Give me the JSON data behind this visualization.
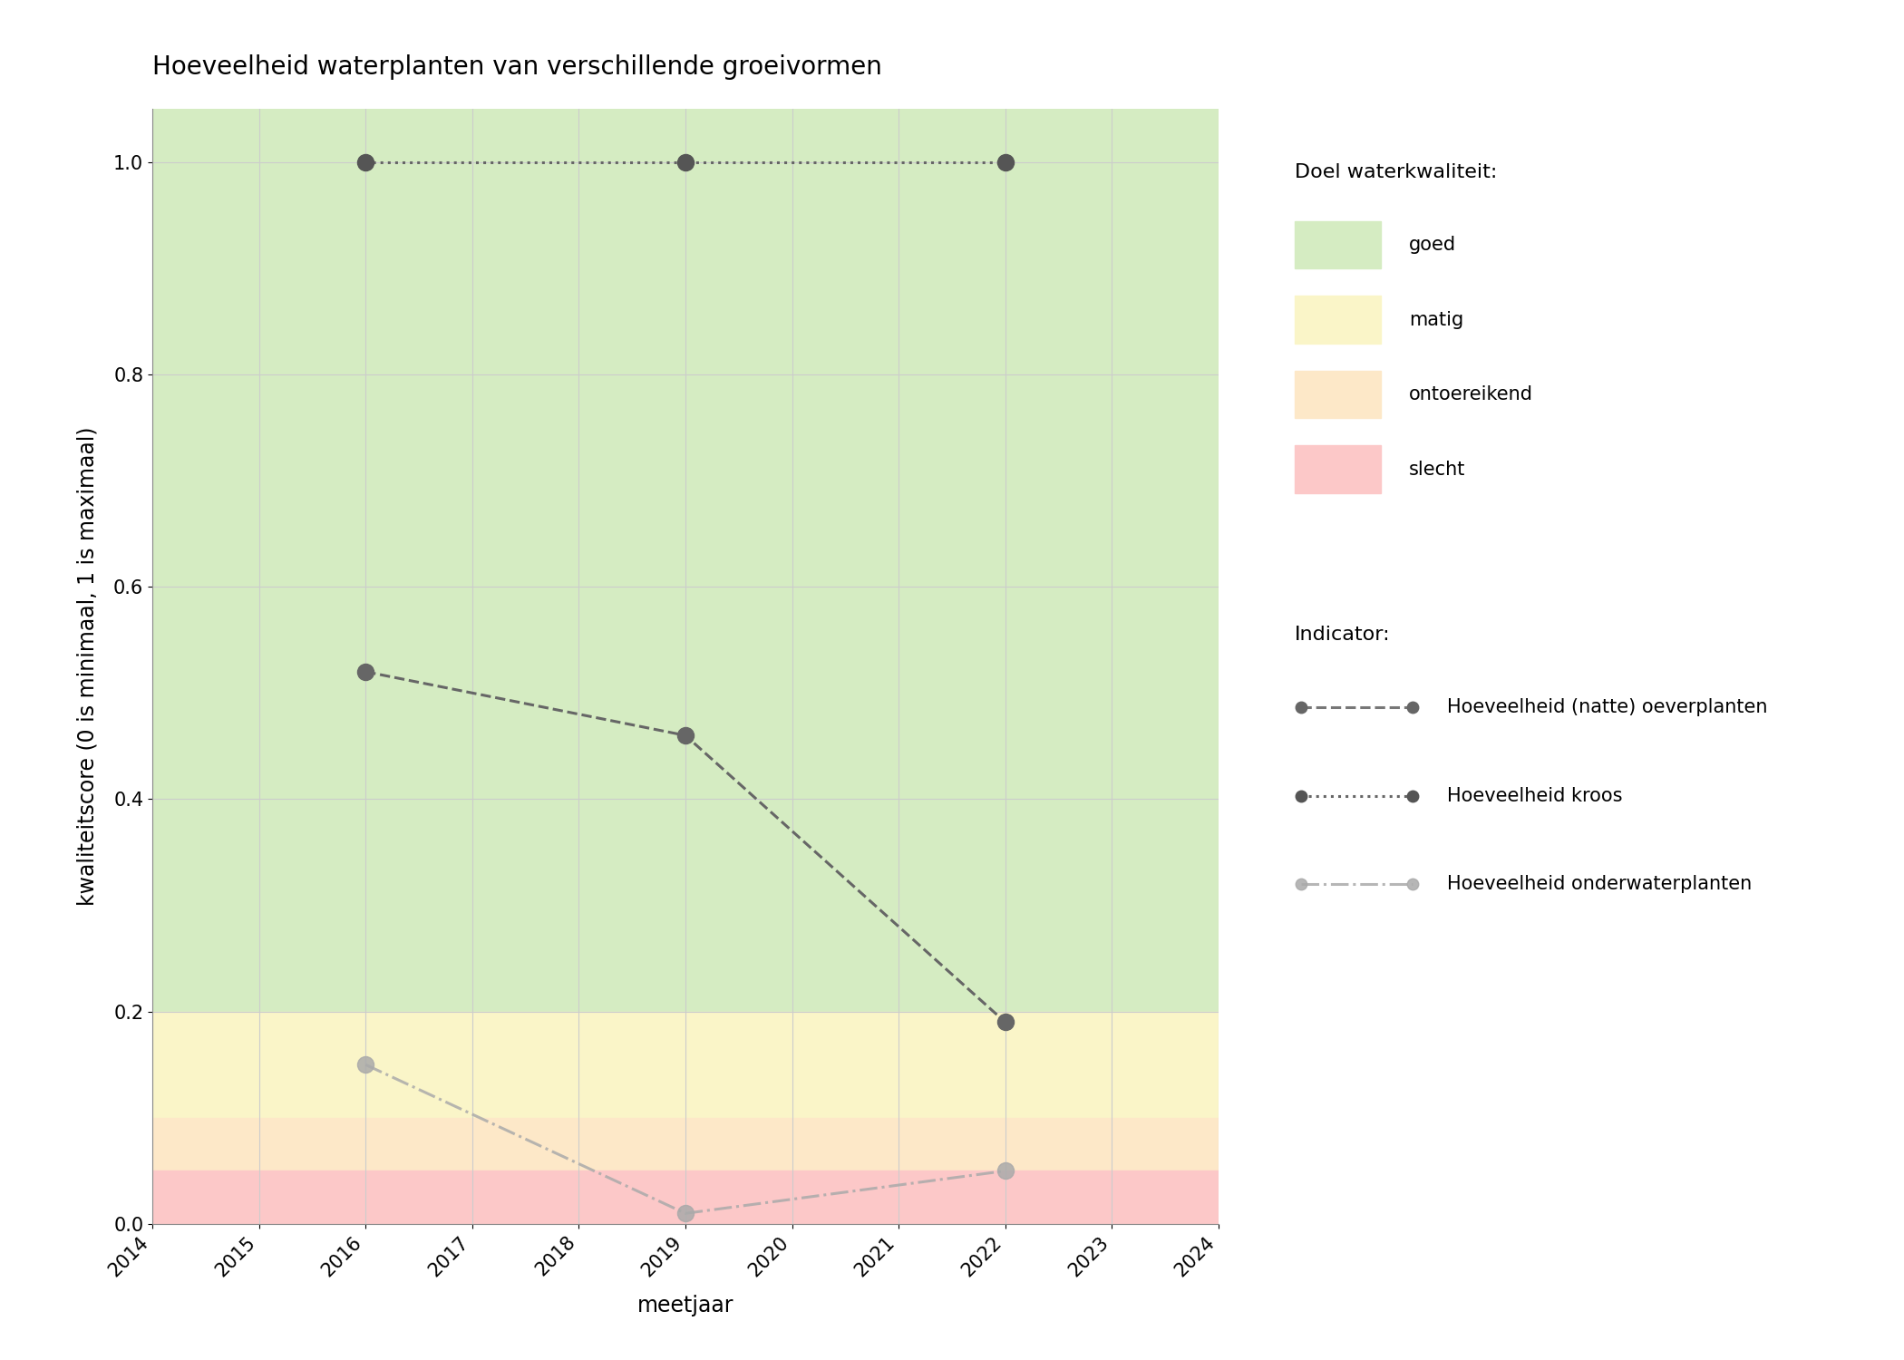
{
  "title": "Hoeveelheid waterplanten van verschillende groeivormen",
  "xlabel": "meetjaar",
  "ylabel": "kwaliteitscore (0 is minimaal, 1 is maximaal)",
  "xlim": [
    2014,
    2024
  ],
  "ylim": [
    0.0,
    1.05
  ],
  "xticks": [
    2014,
    2015,
    2016,
    2017,
    2018,
    2019,
    2020,
    2021,
    2022,
    2023,
    2024
  ],
  "yticks": [
    0.0,
    0.2,
    0.4,
    0.6,
    0.8,
    1.0
  ],
  "band_goed": {
    "ymin": 0.2,
    "ymax": 1.05,
    "color": "#d5ecc2",
    "label": "goed"
  },
  "band_matig": {
    "ymin": 0.1,
    "ymax": 0.2,
    "color": "#faf5c8",
    "label": "matig"
  },
  "band_ontoereikend": {
    "ymin": 0.05,
    "ymax": 0.1,
    "color": "#fde8c8",
    "label": "ontoereikend"
  },
  "band_slecht": {
    "ymin": 0.0,
    "ymax": 0.05,
    "color": "#fcc8c8",
    "label": "slecht"
  },
  "series": [
    {
      "name": "Hoeveelheid (natte) oeverplanten",
      "x": [
        2016,
        2019,
        2022
      ],
      "y": [
        0.52,
        0.46,
        0.19
      ],
      "color": "#666666",
      "linestyle": "dashed",
      "linewidth": 2.2,
      "markersize": 13,
      "marker_color": "#666666",
      "alpha": 1.0,
      "zorder": 3
    },
    {
      "name": "Hoeveelheid kroos",
      "x": [
        2016,
        2019,
        2022
      ],
      "y": [
        1.0,
        1.0,
        1.0
      ],
      "color": "#666666",
      "linestyle": "dotted",
      "linewidth": 2.2,
      "markersize": 13,
      "marker_color": "#555555",
      "alpha": 1.0,
      "zorder": 4
    },
    {
      "name": "Hoeveelheid onderwaterplanten",
      "x": [
        2016,
        2019,
        2022
      ],
      "y": [
        0.15,
        0.01,
        0.05
      ],
      "color": "#aaaaaa",
      "linestyle": "dashdot",
      "linewidth": 2.2,
      "markersize": 13,
      "marker_color": "#aaaaaa",
      "alpha": 0.85,
      "zorder": 2
    }
  ],
  "legend_title_doel": "Doel waterkwaliteit:",
  "legend_title_indicator": "Indicator:",
  "grid_color": "#cccccc",
  "grid_linewidth": 0.8,
  "title_fontsize": 20,
  "axis_label_fontsize": 17,
  "tick_fontsize": 15
}
